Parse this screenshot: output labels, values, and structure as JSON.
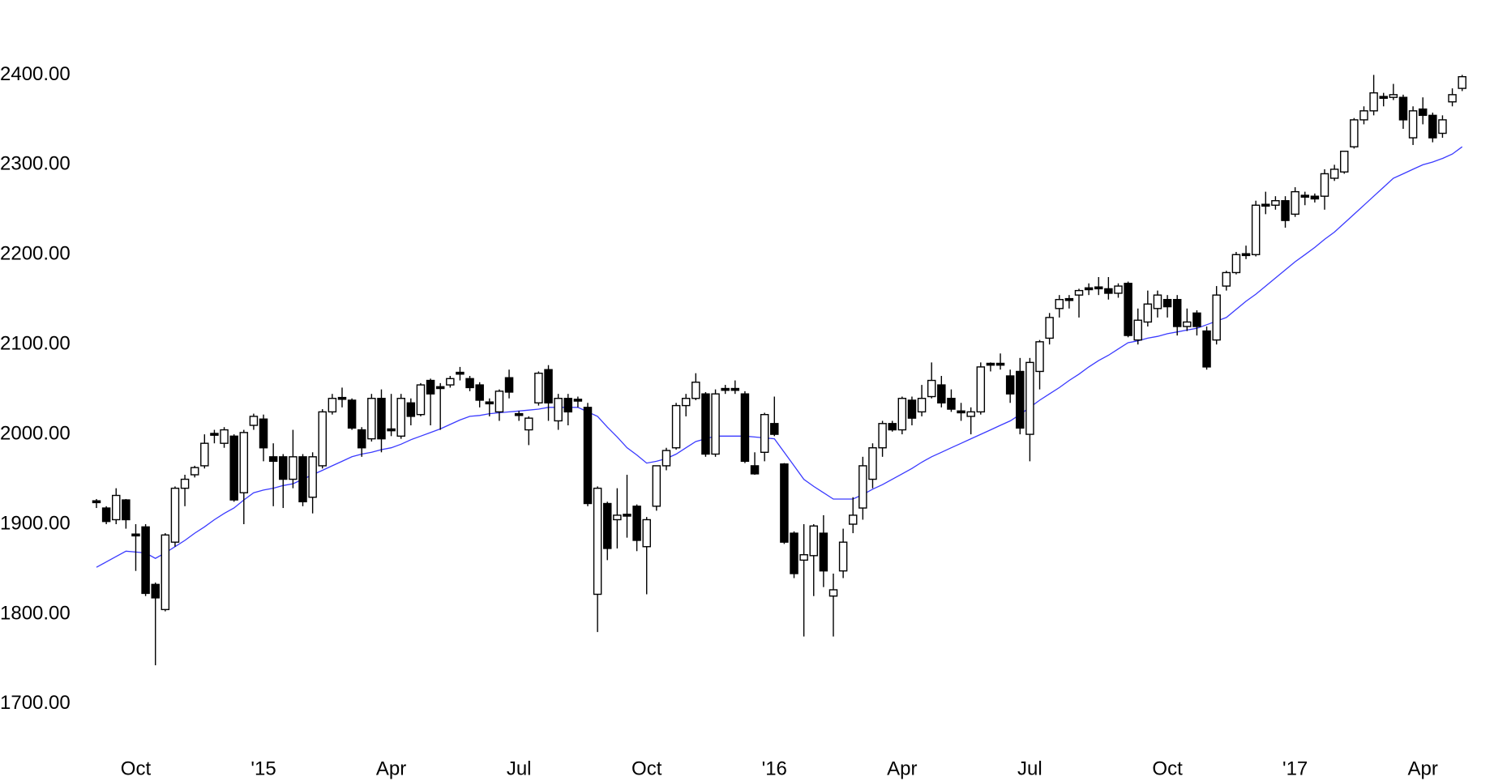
{
  "chart_data": {
    "type": "candlestick",
    "categories": [
      null,
      null,
      null,
      null,
      "Oct",
      null,
      null,
      null,
      null,
      null,
      null,
      null,
      null,
      null,
      null,
      null,
      null,
      "'15",
      null,
      null,
      null,
      null,
      null,
      null,
      null,
      null,
      null,
      null,
      null,
      null,
      "Apr",
      null,
      null,
      null,
      null,
      null,
      null,
      null,
      null,
      null,
      null,
      null,
      null,
      "Jul",
      null,
      null,
      null,
      null,
      null,
      null,
      null,
      null,
      null,
      null,
      null,
      null,
      "Oct",
      null,
      null,
      null,
      null,
      null,
      null,
      null,
      null,
      null,
      null,
      null,
      null,
      "'16",
      null,
      null,
      null,
      null,
      null,
      null,
      null,
      null,
      null,
      null,
      null,
      null,
      "Apr",
      null,
      null,
      null,
      null,
      null,
      null,
      null,
      null,
      null,
      null,
      null,
      null,
      "Jul",
      null,
      null,
      null,
      null,
      null,
      null,
      null,
      null,
      null,
      null,
      null,
      null,
      null,
      "Oct",
      null,
      null,
      null,
      null,
      null,
      null,
      null,
      null,
      null,
      null,
      null,
      null,
      "'17",
      null,
      null,
      null,
      null,
      null,
      null,
      null,
      null,
      null,
      null,
      null,
      null,
      "Apr",
      null,
      null,
      null,
      null
    ],
    "open": [
      1926,
      1918,
      1905,
      1927,
      1889,
      1897,
      1833,
      1805,
      1880,
      1940,
      1955,
      1965,
      2001,
      1990,
      1998,
      1935,
      2010,
      2017,
      1975,
      1975,
      1950,
      1975,
      1930,
      1965,
      2025,
      2041,
      2038,
      2005,
      1995,
      2040,
      2006,
      1998,
      2035,
      2022,
      2060,
      2053,
      2055,
      2069,
      2062,
      2055,
      2036,
      2025,
      2063,
      2023,
      2005,
      2035,
      2072,
      2015,
      2040,
      2039,
      2030,
      1822,
      1923,
      1905,
      1911,
      1920,
      1875,
      1920,
      1965,
      1985,
      2032,
      2040,
      2045,
      1978,
      2051,
      2051,
      2045,
      1965,
      1980,
      2012,
      1967,
      1890,
      1860,
      1865,
      1890,
      1820,
      1848,
      1900,
      1918,
      1950,
      1985,
      2012,
      2005,
      2038,
      2025,
      2042,
      2055,
      2040,
      2026,
      2020,
      2025,
      2079,
      2079,
      2065,
      2070,
      2000,
      2070,
      2107,
      2140,
      2151,
      2155,
      2163,
      2164,
      2162,
      2157,
      2168,
      2105,
      2125,
      2140,
      2150,
      2150,
      2120,
      2135,
      2115,
      2105,
      2165,
      2180,
      2201,
      2200,
      2256,
      2255,
      2260,
      2245,
      2266,
      2265,
      2265,
      2285,
      2292,
      2320,
      2350,
      2360,
      2376,
      2375,
      2375,
      2330,
      2362,
      2355,
      2335,
      2370,
      2385
    ],
    "high": [
      1928,
      1920,
      1940,
      1928,
      1900,
      1900,
      1835,
      1890,
      1942,
      1955,
      1965,
      2000,
      2005,
      2008,
      2000,
      2005,
      2023,
      2022,
      1990,
      1978,
      2005,
      1978,
      1980,
      2028,
      2045,
      2052,
      2040,
      2008,
      2045,
      2050,
      2045,
      2045,
      2040,
      2057,
      2062,
      2057,
      2065,
      2075,
      2065,
      2058,
      2040,
      2050,
      2072,
      2026,
      2020,
      2070,
      2077,
      2045,
      2045,
      2042,
      2035,
      1942,
      1925,
      1940,
      1955,
      1922,
      1908,
      1965,
      1985,
      2035,
      2045,
      2068,
      2047,
      2050,
      2055,
      2060,
      2048,
      1980,
      2024,
      2042,
      1968,
      1892,
      1900,
      1900,
      1910,
      1845,
      1895,
      1930,
      1975,
      1990,
      2015,
      2015,
      2042,
      2042,
      2055,
      2080,
      2065,
      2050,
      2035,
      2030,
      2080,
      2080,
      2090,
      2072,
      2085,
      2085,
      2105,
      2135,
      2155,
      2155,
      2162,
      2168,
      2175,
      2175,
      2168,
      2170,
      2140,
      2160,
      2160,
      2155,
      2155,
      2140,
      2138,
      2120,
      2165,
      2182,
      2203,
      2210,
      2260,
      2270,
      2265,
      2265,
      2275,
      2270,
      2268,
      2295,
      2300,
      2315,
      2352,
      2365,
      2400,
      2380,
      2390,
      2378,
      2365,
      2375,
      2358,
      2355,
      2385,
      2400
    ],
    "low": [
      1918,
      1900,
      1900,
      1895,
      1848,
      1820,
      1743,
      1803,
      1875,
      1920,
      1952,
      1962,
      1990,
      1985,
      1925,
      1900,
      2005,
      1970,
      1920,
      1918,
      1940,
      1920,
      1912,
      1962,
      2022,
      2030,
      2005,
      1975,
      1992,
      1980,
      1998,
      1995,
      2010,
      2020,
      2010,
      2005,
      2052,
      2060,
      2048,
      2030,
      2020,
      2015,
      2040,
      2015,
      1988,
      2032,
      2015,
      2005,
      2010,
      2030,
      1920,
      1780,
      1860,
      1873,
      1885,
      1870,
      1822,
      1915,
      1960,
      1983,
      2020,
      2038,
      1975,
      1975,
      2045,
      2045,
      1968,
      1955,
      1970,
      1998,
      1878,
      1840,
      1775,
      1820,
      1830,
      1775,
      1840,
      1890,
      1905,
      1940,
      1975,
      2003,
      2000,
      2010,
      2020,
      2040,
      2030,
      2025,
      2015,
      2000,
      2022,
      2070,
      2072,
      2035,
      2000,
      1970,
      2050,
      2100,
      2130,
      2140,
      2130,
      2155,
      2155,
      2150,
      2152,
      2108,
      2100,
      2120,
      2130,
      2130,
      2110,
      2115,
      2110,
      2072,
      2100,
      2160,
      2178,
      2195,
      2198,
      2245,
      2250,
      2230,
      2242,
      2255,
      2258,
      2250,
      2282,
      2290,
      2318,
      2345,
      2355,
      2365,
      2372,
      2340,
      2322,
      2345,
      2325,
      2330,
      2365,
      2382
    ],
    "close": [
      1924,
      1903,
      1932,
      1905,
      1887,
      1823,
      1818,
      1888,
      1940,
      1950,
      1963,
      1990,
      1999,
      2005,
      1927,
      2002,
      2020,
      1985,
      1970,
      1950,
      1975,
      1925,
      1975,
      2025,
      2040,
      2039,
      2007,
      1985,
      2040,
      1995,
      2004,
      2040,
      2020,
      2055,
      2045,
      2051,
      2062,
      2067,
      2052,
      2038,
      2034,
      2048,
      2047,
      2021,
      2018,
      2068,
      2035,
      2040,
      2025,
      2037,
      1923,
      1940,
      1873,
      1910,
      1909,
      1882,
      1905,
      1965,
      1982,
      2032,
      2040,
      2058,
      1978,
      2045,
      2049,
      2049,
      1970,
      1956,
      2022,
      2000,
      1880,
      1845,
      1866,
      1898,
      1848,
      1827,
      1880,
      1910,
      1965,
      1985,
      2012,
      2005,
      2040,
      2018,
      2040,
      2060,
      2035,
      2028,
      2024,
      2025,
      2075,
      2077,
      2077,
      2045,
      2007,
      2080,
      2103,
      2130,
      2150,
      2149,
      2160,
      2161,
      2162,
      2157,
      2165,
      2110,
      2127,
      2145,
      2155,
      2142,
      2120,
      2125,
      2120,
      2075,
      2155,
      2180,
      2200,
      2199,
      2255,
      2254,
      2260,
      2238,
      2270,
      2264,
      2262,
      2290,
      2295,
      2315,
      2350,
      2360,
      2380,
      2374,
      2378,
      2350,
      2360,
      2355,
      2330,
      2350,
      2378,
      2398
    ],
    "up_color": "#ffffff",
    "down_color": "#000000",
    "ma": {
      "color": "#3a3aff",
      "values": [
        1852,
        1858,
        1864,
        1870,
        1869,
        1868,
        1862,
        1868,
        1875,
        1882,
        1890,
        1897,
        1905,
        1912,
        1918,
        1927,
        1935,
        1938,
        1940,
        1943,
        1945,
        1950,
        1955,
        1960,
        1965,
        1970,
        1975,
        1978,
        1980,
        1983,
        1985,
        1989,
        1994,
        1998,
        2002,
        2006,
        2011,
        2016,
        2020,
        2021,
        2023,
        2024,
        2025,
        2026,
        2027,
        2028,
        2030,
        2030,
        2030,
        2030,
        2025,
        2020,
        2008,
        1997,
        1985,
        1977,
        1968,
        1970,
        1973,
        1978,
        1985,
        1992,
        1995,
        1998,
        1998,
        1998,
        1998,
        1997,
        1996,
        1995,
        1980,
        1965,
        1950,
        1942,
        1935,
        1928,
        1928,
        1928,
        1933,
        1939,
        1944,
        1950,
        1956,
        1962,
        1969,
        1975,
        1980,
        1985,
        1990,
        1995,
        2000,
        2005,
        2010,
        2015,
        2022,
        2030,
        2038,
        2045,
        2052,
        2060,
        2067,
        2075,
        2082,
        2088,
        2095,
        2102,
        2104,
        2107,
        2109,
        2112,
        2114,
        2116,
        2118,
        2122,
        2126,
        2130,
        2139,
        2148,
        2156,
        2165,
        2174,
        2183,
        2192,
        2200,
        2208,
        2217,
        2225,
        2235,
        2245,
        2255,
        2265,
        2275,
        2285,
        2290,
        2295,
        2300,
        2303,
        2307,
        2312,
        2320
      ]
    },
    "ylim": [
      1660,
      2460
    ],
    "yticks": [
      {
        "value": 1700,
        "label": "1700.00"
      },
      {
        "value": 1800,
        "label": "1800.00"
      },
      {
        "value": 1900,
        "label": "1900.00"
      },
      {
        "value": 2000,
        "label": "2000.00"
      },
      {
        "value": 2100,
        "label": "2100.00"
      },
      {
        "value": 2200,
        "label": "2200.00"
      },
      {
        "value": 2300,
        "label": "2300.00"
      },
      {
        "value": 2400,
        "label": "2400.00"
      }
    ],
    "grid": false
  }
}
